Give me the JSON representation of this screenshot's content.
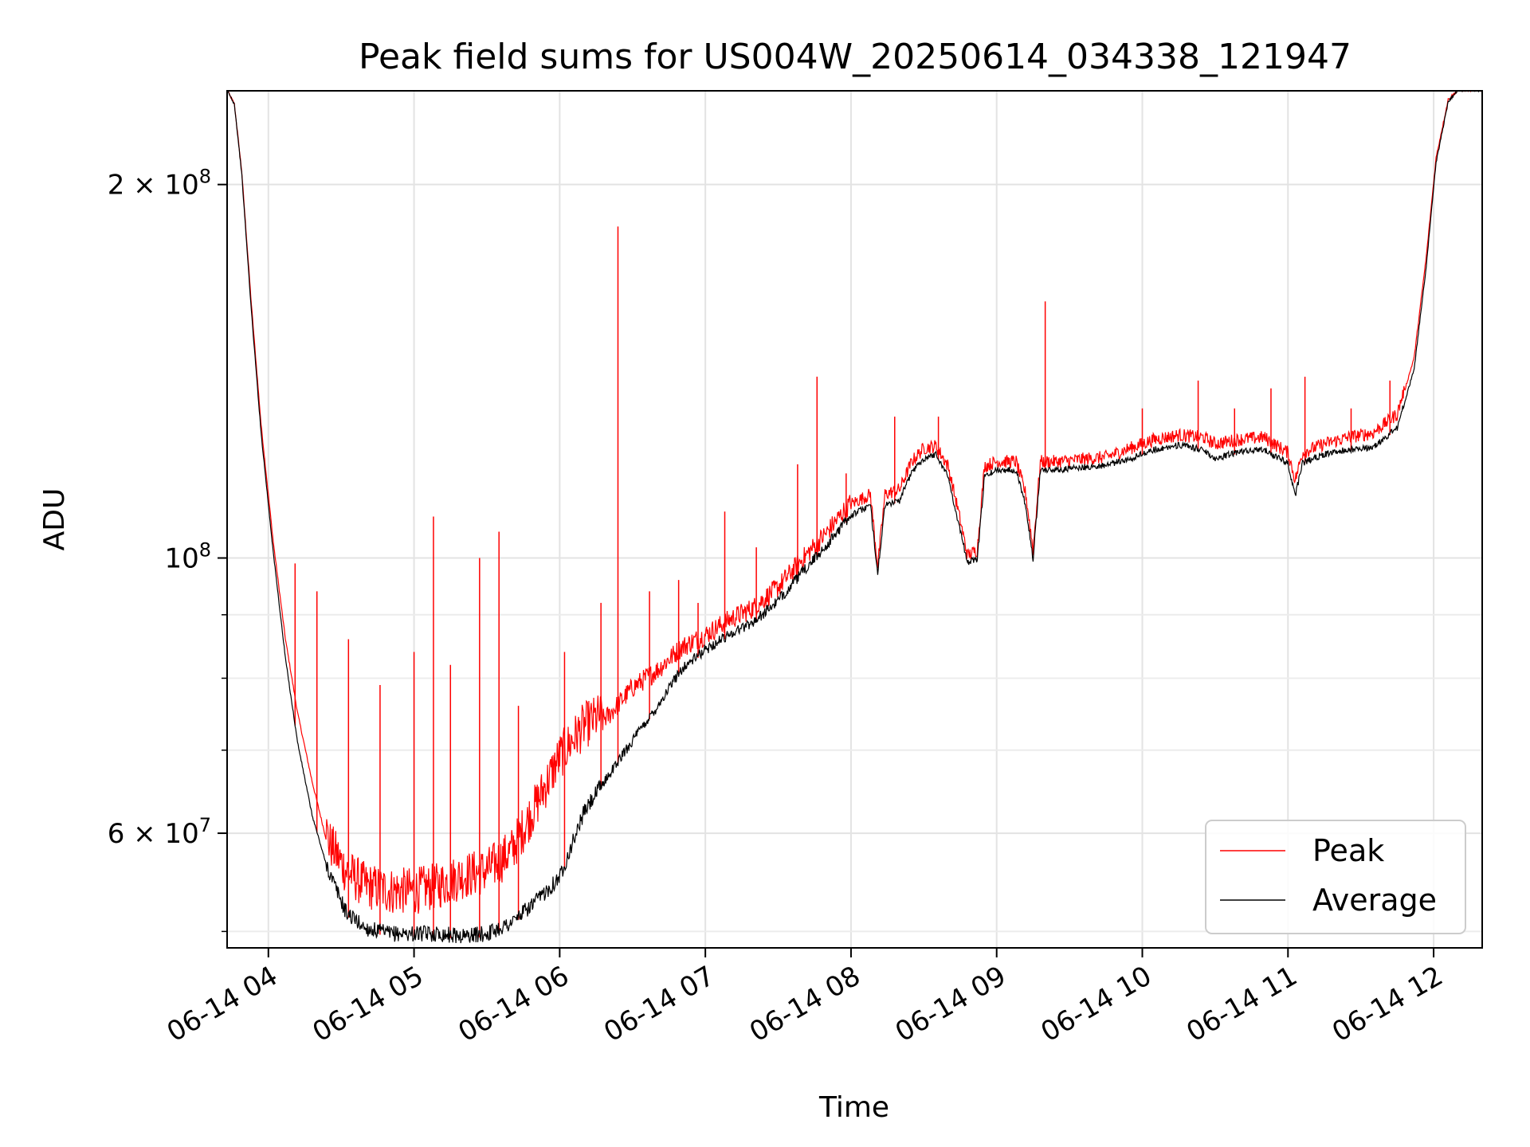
{
  "chart_data": {
    "type": "line",
    "title": "Peak field sums for US004W_20250614_034338_121947",
    "xlabel": "Time",
    "ylabel": "ADU",
    "y_scale": "log",
    "xlim": [
      "06-14 03:43",
      "06-14 12:20"
    ],
    "ylim": [
      48500000,
      238000000
    ],
    "grid": true,
    "legend_position": "lower-right",
    "x_ticks": [
      "06-14 04",
      "06-14 05",
      "06-14 06",
      "06-14 07",
      "06-14 08",
      "06-14 09",
      "06-14 10",
      "06-14 11",
      "06-14 12"
    ],
    "y_tick_labels": [
      {
        "value": 200000000,
        "label": "2 × 10^8"
      },
      {
        "value": 100000000,
        "label": "10^8"
      },
      {
        "value": 60000000,
        "label": "6 × 10^7"
      }
    ],
    "y_minor_ticks": [
      50000000,
      70000000,
      80000000,
      90000000
    ],
    "series": [
      {
        "name": "Peak",
        "color": "#ff0000",
        "points": [
          [
            "06-14 03:43",
            238000000
          ],
          [
            "06-14 03:46",
            232000000
          ],
          [
            "06-14 03:49",
            205000000
          ],
          [
            "06-14 03:53",
            160000000
          ],
          [
            "06-14 03:57",
            128000000
          ],
          [
            "06-14 04:02",
            103000000
          ],
          [
            "06-14 04:07",
            86000000
          ],
          [
            "06-14 04:12",
            75000000
          ],
          [
            "06-14 04:18",
            66000000
          ],
          [
            "06-14 04:25",
            58000000
          ],
          [
            "06-14 04:32",
            55000000
          ],
          [
            "06-14 04:40",
            53500000
          ],
          [
            "06-14 04:50",
            53000000
          ],
          [
            "06-14 05:00",
            53000000
          ],
          [
            "06-14 05:10",
            53500000
          ],
          [
            "06-14 05:20",
            54500000
          ],
          [
            "06-14 05:30",
            55000000
          ],
          [
            "06-14 05:40",
            57000000
          ],
          [
            "06-14 05:50",
            62000000
          ],
          [
            "06-14 06:00",
            68000000
          ],
          [
            "06-14 06:10",
            72000000
          ],
          [
            "06-14 06:20",
            74000000
          ],
          [
            "06-14 06:30",
            78000000
          ],
          [
            "06-14 06:40",
            80500000
          ],
          [
            "06-14 06:50",
            84000000
          ],
          [
            "06-14 07:00",
            86000000
          ],
          [
            "06-14 07:10",
            88500000
          ],
          [
            "06-14 07:20",
            90500000
          ],
          [
            "06-14 07:30",
            94000000
          ],
          [
            "06-14 07:40",
            99000000
          ],
          [
            "06-14 07:50",
            104000000
          ],
          [
            "06-14 08:00",
            110000000
          ],
          [
            "06-14 08:08",
            112000000
          ],
          [
            "06-14 08:11",
            98000000
          ],
          [
            "06-14 08:14",
            112000000
          ],
          [
            "06-14 08:20",
            113000000
          ],
          [
            "06-14 08:25",
            119000000
          ],
          [
            "06-14 08:30",
            122000000
          ],
          [
            "06-14 08:35",
            122500000
          ],
          [
            "06-14 08:40",
            118000000
          ],
          [
            "06-14 08:44",
            109000000
          ],
          [
            "06-14 08:48",
            100000000
          ],
          [
            "06-14 08:52",
            101000000
          ],
          [
            "06-14 08:55",
            118000000
          ],
          [
            "06-14 09:00",
            119000000
          ],
          [
            "06-14 09:08",
            119000000
          ],
          [
            "06-14 09:12",
            112000000
          ],
          [
            "06-14 09:15",
            101000000
          ],
          [
            "06-14 09:18",
            119000000
          ],
          [
            "06-14 09:25",
            119000000
          ],
          [
            "06-14 09:35",
            119500000
          ],
          [
            "06-14 09:45",
            120000000
          ],
          [
            "06-14 09:55",
            122000000
          ],
          [
            "06-14 10:05",
            124000000
          ],
          [
            "06-14 10:15",
            125000000
          ],
          [
            "06-14 10:25",
            124500000
          ],
          [
            "06-14 10:30",
            123000000
          ],
          [
            "06-14 10:40",
            124000000
          ],
          [
            "06-14 10:50",
            124500000
          ],
          [
            "06-14 11:00",
            121000000
          ],
          [
            "06-14 11:03",
            115000000
          ],
          [
            "06-14 11:06",
            121000000
          ],
          [
            "06-14 11:15",
            123000000
          ],
          [
            "06-14 11:25",
            124500000
          ],
          [
            "06-14 11:35",
            125500000
          ],
          [
            "06-14 11:45",
            130000000
          ],
          [
            "06-14 11:52",
            145000000
          ],
          [
            "06-14 11:57",
            175000000
          ],
          [
            "06-14 12:01",
            210000000
          ],
          [
            "06-14 12:06",
            234000000
          ],
          [
            "06-14 12:10",
            238000000
          ],
          [
            "06-14 12:20",
            238000000
          ]
        ]
      },
      {
        "name": "Average",
        "color": "#000000",
        "points": [
          [
            "06-14 03:43",
            238000000
          ],
          [
            "06-14 03:46",
            232000000
          ],
          [
            "06-14 03:49",
            204000000
          ],
          [
            "06-14 03:53",
            158000000
          ],
          [
            "06-14 03:57",
            126000000
          ],
          [
            "06-14 04:02",
            101000000
          ],
          [
            "06-14 04:07",
            83000000
          ],
          [
            "06-14 04:12",
            71000000
          ],
          [
            "06-14 04:18",
            62000000
          ],
          [
            "06-14 04:25",
            55500000
          ],
          [
            "06-14 04:32",
            51500000
          ],
          [
            "06-14 04:40",
            50000000
          ],
          [
            "06-14 04:50",
            49500000
          ],
          [
            "06-14 05:00",
            49500000
          ],
          [
            "06-14 05:10",
            49500000
          ],
          [
            "06-14 05:20",
            49300000
          ],
          [
            "06-14 05:30",
            49500000
          ],
          [
            "06-14 05:40",
            50500000
          ],
          [
            "06-14 05:50",
            52500000
          ],
          [
            "06-14 06:00",
            55000000
          ],
          [
            "06-14 06:10",
            62000000
          ],
          [
            "06-14 06:20",
            66500000
          ],
          [
            "06-14 06:30",
            71000000
          ],
          [
            "06-14 06:40",
            75500000
          ],
          [
            "06-14 06:50",
            81000000
          ],
          [
            "06-14 07:00",
            84000000
          ],
          [
            "06-14 07:10",
            86500000
          ],
          [
            "06-14 07:20",
            88500000
          ],
          [
            "06-14 07:30",
            92000000
          ],
          [
            "06-14 07:40",
            97000000
          ],
          [
            "06-14 07:50",
            102000000
          ],
          [
            "06-14 08:00",
            108000000
          ],
          [
            "06-14 08:08",
            110000000
          ],
          [
            "06-14 08:11",
            97000000
          ],
          [
            "06-14 08:14",
            110000000
          ],
          [
            "06-14 08:20",
            111000000
          ],
          [
            "06-14 08:25",
            117000000
          ],
          [
            "06-14 08:30",
            120000000
          ],
          [
            "06-14 08:35",
            121000000
          ],
          [
            "06-14 08:40",
            116000000
          ],
          [
            "06-14 08:44",
            107000000
          ],
          [
            "06-14 08:48",
            99000000
          ],
          [
            "06-14 08:52",
            99500000
          ],
          [
            "06-14 08:55",
            116000000
          ],
          [
            "06-14 09:00",
            117500000
          ],
          [
            "06-14 09:08",
            117500000
          ],
          [
            "06-14 09:12",
            110000000
          ],
          [
            "06-14 09:15",
            99500000
          ],
          [
            "06-14 09:18",
            117500000
          ],
          [
            "06-14 09:25",
            117500000
          ],
          [
            "06-14 09:35",
            118000000
          ],
          [
            "06-14 09:45",
            118500000
          ],
          [
            "06-14 09:55",
            120000000
          ],
          [
            "06-14 10:05",
            122000000
          ],
          [
            "06-14 10:15",
            123000000
          ],
          [
            "06-14 10:25",
            122000000
          ],
          [
            "06-14 10:30",
            120000000
          ],
          [
            "06-14 10:40",
            121500000
          ],
          [
            "06-14 10:50",
            122000000
          ],
          [
            "06-14 11:00",
            119000000
          ],
          [
            "06-14 11:03",
            112000000
          ],
          [
            "06-14 11:06",
            119000000
          ],
          [
            "06-14 11:15",
            121000000
          ],
          [
            "06-14 11:25",
            122000000
          ],
          [
            "06-14 11:35",
            122500000
          ],
          [
            "06-14 11:45",
            127000000
          ],
          [
            "06-14 11:52",
            142000000
          ],
          [
            "06-14 11:57",
            172000000
          ],
          [
            "06-14 12:01",
            208000000
          ],
          [
            "06-14 12:06",
            233000000
          ],
          [
            "06-14 12:10",
            238000000
          ],
          [
            "06-14 12:20",
            238000000
          ]
        ]
      }
    ],
    "peak_spikes": [
      [
        "06-14 04:11",
        99000000
      ],
      [
        "06-14 04:20",
        94000000
      ],
      [
        "06-14 04:33",
        86000000
      ],
      [
        "06-14 04:46",
        79000000
      ],
      [
        "06-14 05:00",
        84000000
      ],
      [
        "06-14 05:08",
        108000000
      ],
      [
        "06-14 05:15",
        82000000
      ],
      [
        "06-14 05:27",
        100000000
      ],
      [
        "06-14 05:35",
        105000000
      ],
      [
        "06-14 05:43",
        76000000
      ],
      [
        "06-14 06:02",
        84000000
      ],
      [
        "06-14 06:17",
        92000000
      ],
      [
        "06-14 06:24",
        185000000
      ],
      [
        "06-14 06:37",
        94000000
      ],
      [
        "06-14 06:49",
        96000000
      ],
      [
        "06-14 06:57",
        92000000
      ],
      [
        "06-14 07:08",
        109000000
      ],
      [
        "06-14 07:21",
        102000000
      ],
      [
        "06-14 07:38",
        119000000
      ],
      [
        "06-14 07:46",
        140000000
      ],
      [
        "06-14 07:58",
        117000000
      ],
      [
        "06-14 08:18",
        130000000
      ],
      [
        "06-14 08:36",
        130000000
      ],
      [
        "06-14 09:20",
        161000000
      ],
      [
        "06-14 10:00",
        132000000
      ],
      [
        "06-14 10:23",
        139000000
      ],
      [
        "06-14 10:38",
        132000000
      ],
      [
        "06-14 10:53",
        137000000
      ],
      [
        "06-14 11:07",
        140000000
      ],
      [
        "06-14 11:26",
        132000000
      ],
      [
        "06-14 11:42",
        139000000
      ]
    ]
  },
  "legend": {
    "items": [
      {
        "label": "Peak",
        "color": "#ff0000"
      },
      {
        "label": "Average",
        "color": "#000000"
      }
    ]
  }
}
